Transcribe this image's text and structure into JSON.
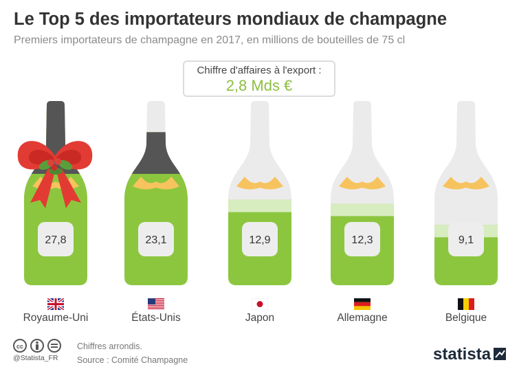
{
  "header": {
    "title": "Le Top 5 des importateurs mondiaux de champagne",
    "subtitle": "Premiers importateurs de champagne en 2017, en millions de bouteilles de 75 cl"
  },
  "revenue": {
    "label": "Chiffre d'affaires à l'export :",
    "value": "2,8 Mds €"
  },
  "chart_data": {
    "type": "bar",
    "categories": [
      "Royaume-Uni",
      "États-Unis",
      "Japon",
      "Allemagne",
      "Belgique"
    ],
    "values": [
      27.8,
      23.1,
      12.9,
      12.3,
      9.1
    ],
    "value_labels": [
      "27,8",
      "23,1",
      "12,9",
      "12,3",
      "9,1"
    ],
    "title": "Le Top 5 des importateurs mondiaux de champagne",
    "subtitle": "Premiers importateurs de champagne en 2017, en millions de bouteilles de 75 cl",
    "xlabel": "",
    "ylabel": "",
    "ylim": [
      0,
      27.8
    ],
    "grid": false
  },
  "flags": [
    "flag-uk-icon",
    "flag-us-icon",
    "flag-japan-icon",
    "flag-germany-icon",
    "flag-belgium-icon"
  ],
  "footer": {
    "cc_handle": "@Statista_FR",
    "note": "Chiffres arrondis.",
    "source": "Source : Comité Champagne",
    "brand": "statista"
  },
  "colors": {
    "green": "#8cc63f",
    "ghost": "#ebebeb",
    "neck_dark": "#555555",
    "gold": "#f7c35f",
    "label_bg": "#ededed",
    "bow_red": "#e23b33",
    "accent_green": "#8cbf3f"
  }
}
